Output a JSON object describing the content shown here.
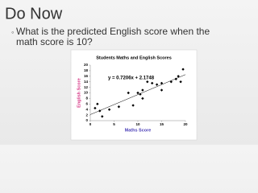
{
  "slide": {
    "title": "Do Now",
    "bullet": "What is the predicted English score when the math score is 10?"
  },
  "chart_data": {
    "type": "scatter",
    "title": "Students Maths and English Scores",
    "x_label": "Maths Score",
    "y_label": "English Score",
    "x": [
      1,
      1.5,
      2,
      2.5,
      4,
      6,
      8,
      9,
      10,
      10.5,
      11,
      11,
      12,
      13,
      14,
      15,
      15,
      17,
      18,
      18.5,
      19,
      19.5
    ],
    "values": [
      4.5,
      6,
      3.5,
      1.5,
      4,
      5,
      10,
      5.5,
      10,
      9.5,
      8,
      11,
      14,
      13.5,
      13,
      13.5,
      11,
      14,
      15,
      16,
      14,
      18.5
    ],
    "color": "#000000",
    "xlim": [
      0,
      20
    ],
    "xticks": [
      0,
      5,
      10,
      15,
      20
    ],
    "ylim": [
      0,
      20
    ],
    "yticks": [
      0,
      2,
      4,
      6,
      8,
      10,
      12,
      14,
      16,
      18,
      20
    ],
    "trendline": {
      "slope": 0.7206,
      "intercept": 2.1748,
      "label": "y = 0.7206x + 2.1748",
      "color": "#000000"
    }
  }
}
